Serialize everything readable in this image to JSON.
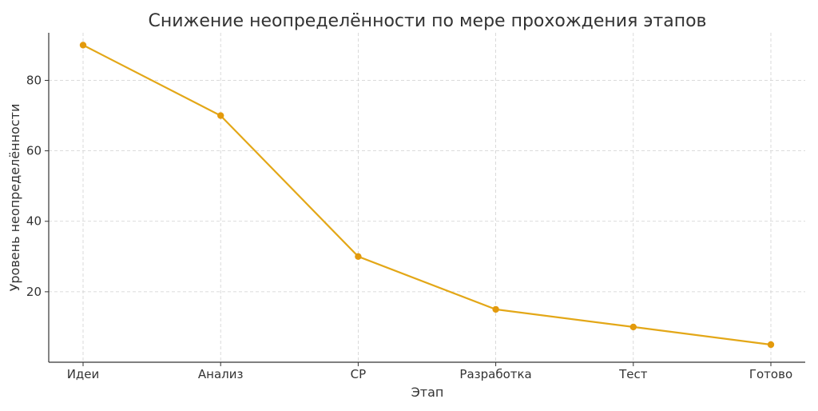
{
  "chart_data": {
    "type": "line",
    "title": "Снижение неопределённости по мере прохождения этапов",
    "xlabel": "Этап",
    "ylabel": "Уровень неопределённости",
    "categories": [
      "Идеи",
      "Анализ",
      "СР",
      "Разработка",
      "Тест",
      "Готово"
    ],
    "series": [
      {
        "values": [
          90,
          70,
          30,
          15,
          10,
          5
        ]
      }
    ],
    "yticks": [
      20,
      40,
      60,
      80
    ],
    "ylim": [
      0,
      93.5
    ],
    "grid": true,
    "line_color": "#E3A717",
    "marker_color": "#E39A0C"
  }
}
